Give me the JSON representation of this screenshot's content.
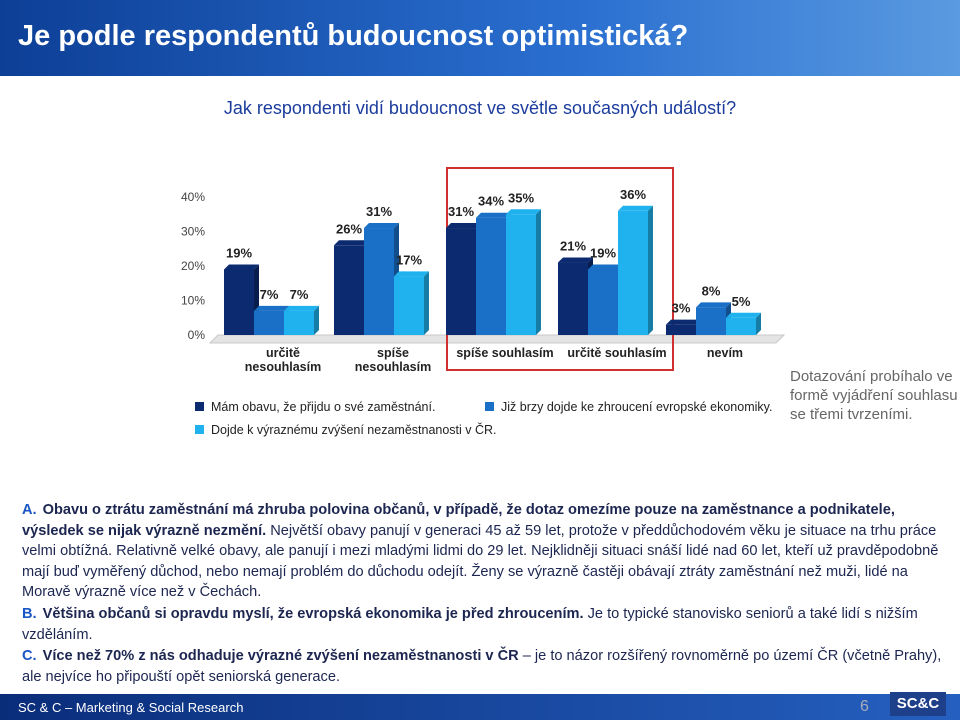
{
  "slide": {
    "title": "Je podle respondentů budoucnost optimistická?",
    "subtitle": "Jak respondenti vidí budoucnost ve světle současných událostí?",
    "side_note": "Dotazování probíhalo ve formě vyjádření souhlasu se třemi tvrzeními.",
    "notes": [
      {
        "marker": "A.",
        "runs": [
          {
            "text": "Obavu o ztrátu zaměstnání má zhruba polovina občanů, v případě, že dotaz omezíme pouze na zaměstnance a podnikatele, výsledek se nijak výrazně nezmění.",
            "bold": true
          },
          {
            "text": " Největší obavy panují v generaci 45 až 59 let, protože v předdůchodovém věku je situace na trhu práce velmi obtížná. Relativně velké obavy, ale panují i mezi mladými lidmi do 29 let. Nejklidněji situaci snáší lidé nad 60 let, kteří už pravděpodobně mají buď vyměřený důchod, nebo nemají problém do důchodu odejít. Ženy se výrazně častěji obávají ztráty zaměstnání než muži, lidé na Moravě výrazně více než v Čechách.",
            "bold": false
          }
        ]
      },
      {
        "marker": "B.",
        "runs": [
          {
            "text": "Většina občanů si opravdu myslí, že evropská ekonomika je před zhroucením.",
            "bold": true
          },
          {
            "text": " Je to typické stanovisko seniorů a také lidí s nižším vzděláním.",
            "bold": false
          }
        ]
      },
      {
        "marker": "C.",
        "runs": [
          {
            "text": "Více než 70% z nás odhaduje výrazné zvýšení nezaměstnanosti v ČR",
            "bold": true
          },
          {
            "text": " – je to názor rozšířený rovnoměrně po území ČR (včetně Prahy), ale nejvíce ho připouští opět seniorská generace.",
            "bold": false
          }
        ]
      }
    ],
    "footer": "SC & C – Marketing & Social Research",
    "page": "6",
    "logo": "SC&C"
  },
  "chart_data": {
    "type": "bar",
    "categories": [
      "určitě nesouhlasím",
      "spíše nesouhlasím",
      "spíše souhlasím",
      "určitě souhlasím",
      "nevím"
    ],
    "series": [
      {
        "name": "Mám obavu, že přijdu o své zaměstnání.",
        "color": "#0b2a6f",
        "values": [
          19,
          26,
          31,
          21,
          3
        ],
        "value_labels": [
          "19%",
          "26%",
          "31%",
          "21%",
          "3%"
        ]
      },
      {
        "name": "Již brzy dojde ke zhroucení evropské ekonomiky.",
        "color": "#1a6fc6",
        "values": [
          7,
          31,
          34,
          19,
          8
        ],
        "value_labels": [
          "7%",
          "31%",
          "34%",
          "19%",
          "8%"
        ]
      },
      {
        "name": "Dojde k výraznému zvýšení nezaměstnanosti v ČR.",
        "color": "#1fb2ef",
        "values": [
          7,
          17,
          35,
          36,
          5
        ],
        "value_labels": [
          "7%",
          "17%",
          "35%",
          "36%",
          "5%"
        ]
      }
    ],
    "ylim": [
      0,
      40
    ],
    "yticks": [
      {
        "value": 0,
        "label": "0%"
      },
      {
        "value": 10,
        "label": "10%"
      },
      {
        "value": 20,
        "label": "20%"
      },
      {
        "value": 30,
        "label": "30%"
      },
      {
        "value": 40,
        "label": "40%"
      }
    ],
    "grid": false
  }
}
